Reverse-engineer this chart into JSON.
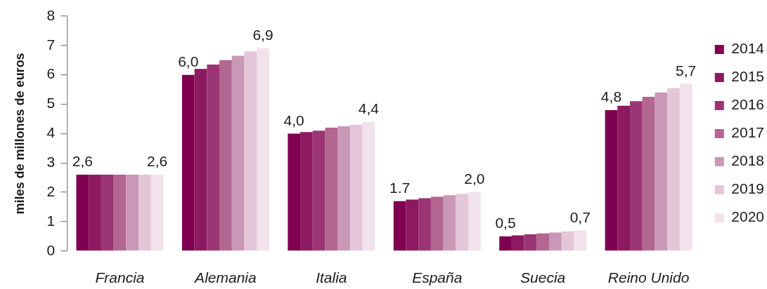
{
  "chart_data": {
    "type": "bar",
    "ylabel": "miles de millones de euros",
    "categories": [
      "Francia",
      "Alemania",
      "Italia",
      "España",
      "Suecia",
      "Reino Unido"
    ],
    "ylim": [
      0,
      8
    ],
    "yticks": [
      0,
      1,
      2,
      3,
      4,
      5,
      6,
      7,
      8
    ],
    "grid": false,
    "legend": "right",
    "series": [
      {
        "name": "2014",
        "color": "#7f0050",
        "values": [
          2.6,
          6.0,
          4.0,
          1.7,
          0.5,
          4.8
        ],
        "value_labels": [
          "2,6",
          "6,0",
          "4,0",
          "1.7",
          "0,5",
          "4,8"
        ]
      },
      {
        "name": "2015",
        "color": "#8d1a60",
        "values": [
          2.6,
          6.2,
          4.05,
          1.75,
          0.53,
          4.95
        ]
      },
      {
        "name": "2016",
        "color": "#9c3574",
        "values": [
          2.6,
          6.35,
          4.1,
          1.8,
          0.57,
          5.1
        ]
      },
      {
        "name": "2017",
        "color": "#b3668f",
        "values": [
          2.6,
          6.5,
          4.2,
          1.85,
          0.6,
          5.25
        ]
      },
      {
        "name": "2018",
        "color": "#ca98b7",
        "values": [
          2.6,
          6.65,
          4.25,
          1.9,
          0.63,
          5.4
        ]
      },
      {
        "name": "2019",
        "color": "#e3c7d8",
        "values": [
          2.6,
          6.8,
          4.3,
          1.95,
          0.67,
          5.55
        ]
      },
      {
        "name": "2020",
        "color": "#f1e2ec",
        "values": [
          2.6,
          6.9,
          4.4,
          2.0,
          0.7,
          5.7
        ],
        "value_labels": [
          "2,6",
          "6,9",
          "4,4",
          "2,0",
          "0,7",
          "5,7"
        ]
      }
    ]
  }
}
